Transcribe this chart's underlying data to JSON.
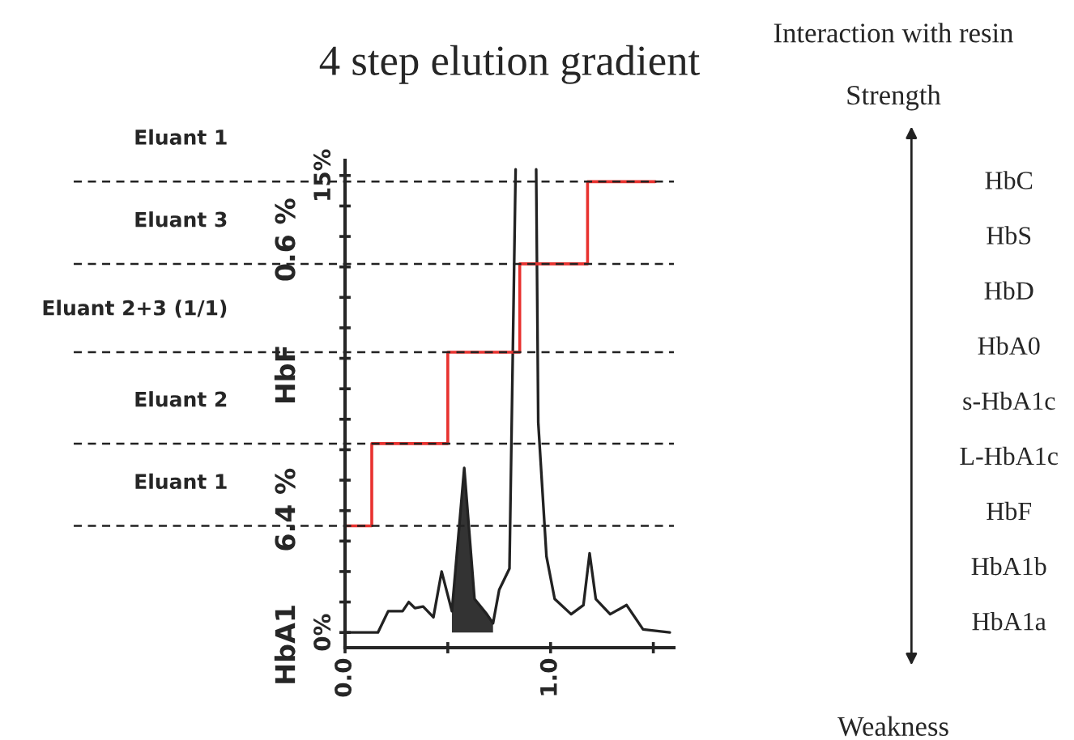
{
  "chart_data": [
    {
      "type": "line",
      "title": "4 step elution gradient",
      "xlim": [
        0,
        1.6
      ],
      "ylim": [
        -0.5,
        15.5
      ],
      "xticks": [
        {
          "value": 0,
          "label": "0.0"
        },
        {
          "value": 0.5,
          "label": null
        },
        {
          "value": 1,
          "label": "1.0"
        },
        {
          "value": 1.5,
          "label": null
        }
      ],
      "yticks": [
        {
          "value": 0,
          "label": "0%"
        },
        {
          "value": 1,
          "label": null
        },
        {
          "value": 2,
          "label": null
        },
        {
          "value": 3,
          "label": null
        },
        {
          "value": 4,
          "label": null
        },
        {
          "value": 5,
          "label": null
        },
        {
          "value": 6,
          "label": null
        },
        {
          "value": 7,
          "label": null
        },
        {
          "value": 8,
          "label": null
        },
        {
          "value": 9,
          "label": null
        },
        {
          "value": 10,
          "label": null
        },
        {
          "value": 11,
          "label": null
        },
        {
          "value": 12,
          "label": null
        },
        {
          "value": 13,
          "label": null
        },
        {
          "value": 14,
          "label": null
        },
        {
          "value": 15,
          "label": "15%"
        }
      ],
      "series": [
        {
          "type": "line",
          "color": "#222222",
          "x": [
            0,
            0.16,
            0.21,
            0.28,
            0.31,
            0.34,
            0.38,
            0.43,
            0.47,
            0.52,
            0.58,
            0.63,
            0.69,
            0.72,
            0.75,
            0.8,
            0.83,
            0.88,
            0.93,
            0.94,
            0.98,
            1.02,
            1.1,
            1.16,
            1.19,
            1.22,
            1.29,
            1.37,
            1.45,
            1.58
          ],
          "values": [
            0,
            0,
            0.7,
            0.7,
            1.0,
            0.8,
            0.85,
            0.5,
            2.0,
            0.7,
            5.4,
            1.1,
            0.6,
            0.3,
            1.4,
            2.1,
            15.2,
            null,
            15.2,
            6.9,
            2.5,
            1.1,
            0.6,
            0.9,
            2.6,
            1.1,
            0.6,
            0.9,
            0.1,
            0
          ]
        },
        {
          "type": "area",
          "color": "#333333",
          "x": [
            0.52,
            0.58,
            0.63,
            0.69,
            0.72
          ],
          "values": [
            0.7,
            5.4,
            1.1,
            0.6,
            0.3
          ]
        },
        {
          "type": "step",
          "color": "#e8322f",
          "x": [
            0,
            0.13,
            0.5,
            0.85,
            1.18,
            1.51
          ],
          "values": [
            3.5,
            6.2,
            9.2,
            12.1,
            14.8,
            14.8
          ]
        }
      ],
      "ref_lines": [
        {
          "axis": "y",
          "value": 3.5,
          "label": "Eluant 1",
          "line_style": "dashed"
        },
        {
          "axis": "y",
          "value": 6.2,
          "label": "Eluant 2",
          "line_style": "dashed"
        },
        {
          "axis": "y",
          "value": 9.2,
          "label": "Eluant 2+3 (1/1)",
          "line_style": "dashed"
        },
        {
          "axis": "y",
          "value": 12.1,
          "label": "Eluant 3",
          "line_style": "dashed"
        },
        {
          "axis": "y",
          "value": 14.8,
          "label": "Eluant 1",
          "line_style": "dashed"
        }
      ],
      "annotations": [
        "HbA1",
        "6.4 %",
        "HbF",
        "0.6 %"
      ],
      "legend": false
    },
    {
      "type": "other",
      "title": "Interaction with resin",
      "categories": [
        "HbC",
        "HbS",
        "HbD",
        "HbA0",
        "s-HbA1c",
        "L-HbA1c",
        "HbF",
        "HbA1b",
        "HbA1a"
      ],
      "annotations": [
        "Strength",
        "Weakness"
      ]
    }
  ]
}
